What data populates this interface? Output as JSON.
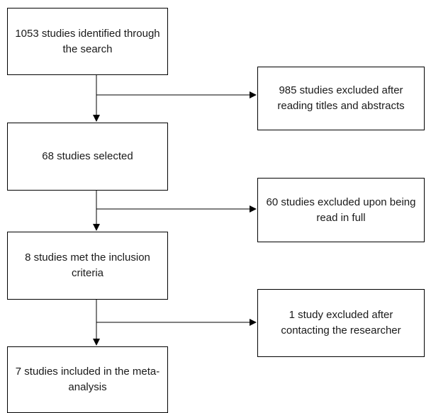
{
  "flowchart": {
    "steps": [
      {
        "label": "1053 studies identified through the search"
      },
      {
        "label": "68 studies selected"
      },
      {
        "label": "8 studies met the inclusion criteria"
      },
      {
        "label": "7 studies included in the meta-analysis"
      }
    ],
    "exclusions": [
      {
        "label": "985 studies excluded after reading titles and abstracts"
      },
      {
        "label": "60 studies excluded upon being read in full"
      },
      {
        "label": "1 study excluded after contacting the researcher"
      }
    ],
    "colors": {
      "stroke": "#000000",
      "text": "#1a1a1a",
      "background": "#ffffff"
    }
  }
}
